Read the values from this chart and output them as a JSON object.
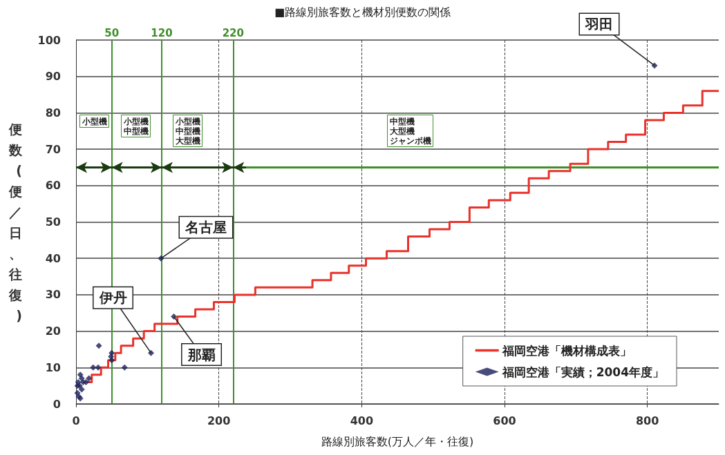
{
  "chart_data": {
    "type": "step",
    "title": "■路線別旅客数と機材別便数の関係",
    "xlabel": "路線別旅客数(万人／年・往復)",
    "ylabel": "便数(便／日、往復)",
    "xlim": [
      0,
      900
    ],
    "xticks": [
      0,
      200,
      400,
      600,
      800
    ],
    "ylim": [
      0,
      100
    ],
    "yticks": [
      0,
      10,
      20,
      30,
      40,
      50,
      60,
      70,
      80,
      90,
      100
    ],
    "grid": true,
    "legend": "bottom right",
    "series": [
      {
        "name": "福岡空港「機材構成表」",
        "color": "#e8322a",
        "marker": "none",
        "x": [
          15,
          22,
          35,
          45,
          55,
          63,
          80,
          95,
          110,
          142,
          167,
          193,
          222,
          251,
          331,
          357,
          382,
          406,
          435,
          465,
          495,
          523,
          551,
          578,
          608,
          634,
          662,
          692,
          717,
          745,
          770,
          797,
          823,
          850,
          877,
          900
        ],
        "values": [
          6,
          8,
          10,
          12,
          14,
          16,
          18,
          20,
          22,
          24,
          26,
          28,
          30,
          32,
          34,
          36,
          38,
          40,
          42,
          46,
          48,
          50,
          54,
          56,
          58,
          62,
          64,
          66,
          70,
          72,
          74,
          78,
          80,
          82,
          86,
          86
        ]
      },
      {
        "name": "福岡空港「実績；2004年度」",
        "type": "scatter",
        "color": "#1a1f5a",
        "marker": "diamond",
        "x": [
          810,
          119,
          137,
          105,
          32,
          68,
          50,
          49,
          50,
          24,
          31,
          6,
          3,
          5,
          8,
          2,
          4,
          6,
          10,
          14,
          18,
          2,
          8
        ],
        "values": [
          93,
          40,
          24,
          14,
          16,
          10,
          14,
          13,
          12,
          10,
          10,
          8,
          6,
          5,
          4,
          3,
          2,
          1.5,
          6,
          6,
          7,
          5,
          7
        ]
      }
    ],
    "ref_lines": [
      {
        "axis": "x",
        "value": 50,
        "label": "50",
        "color": "#3f8f2a"
      },
      {
        "axis": "x",
        "value": 120,
        "label": "120",
        "color": "#3f8f2a"
      },
      {
        "axis": "x",
        "value": 220,
        "label": "220",
        "color": "#3f8f2a"
      },
      {
        "axis": "y",
        "value": 65,
        "color": "#3f8f2a"
      }
    ],
    "annotations": [
      "小型機",
      "小型機中型機",
      "小型機中型機大型機",
      "中型機大型機ジャンボ機",
      {
        "text": "羽田",
        "x": 810,
        "y": 93
      },
      {
        "text": "名古屋",
        "x": 119,
        "y": 40
      },
      {
        "text": "伊丹",
        "x": 105,
        "y": 14
      },
      {
        "text": "那覇",
        "x": 137,
        "y": 24
      }
    ]
  }
}
